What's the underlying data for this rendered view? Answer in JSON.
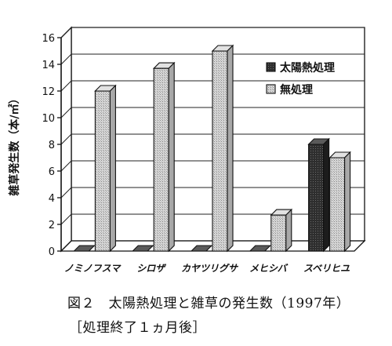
{
  "chart_data": {
    "type": "bar",
    "ylabel": "雑草発生数（本/㎡）",
    "ylim": [
      0,
      16
    ],
    "yticks": [
      0,
      2,
      4,
      6,
      8,
      10,
      12,
      14,
      16
    ],
    "grid": true,
    "legend_position": "top-right",
    "categories": [
      "ノミノフスマ",
      "シロザ",
      "カヤツリグサ",
      "メヒシバ",
      "スベリヒユ"
    ],
    "series": [
      {
        "name": "太陽熱処理",
        "values": [
          0,
          0,
          0,
          0,
          8
        ],
        "color": "#3a3a3a"
      },
      {
        "name": "無処理",
        "values": [
          12,
          13.7,
          15,
          2.7,
          7
        ],
        "color": "#c8c8c8"
      }
    ]
  },
  "caption": {
    "title": "図２　太陽熱処理と雑草の発生数（1997年）",
    "subtitle": "［処理終了１ヵ月後］"
  }
}
